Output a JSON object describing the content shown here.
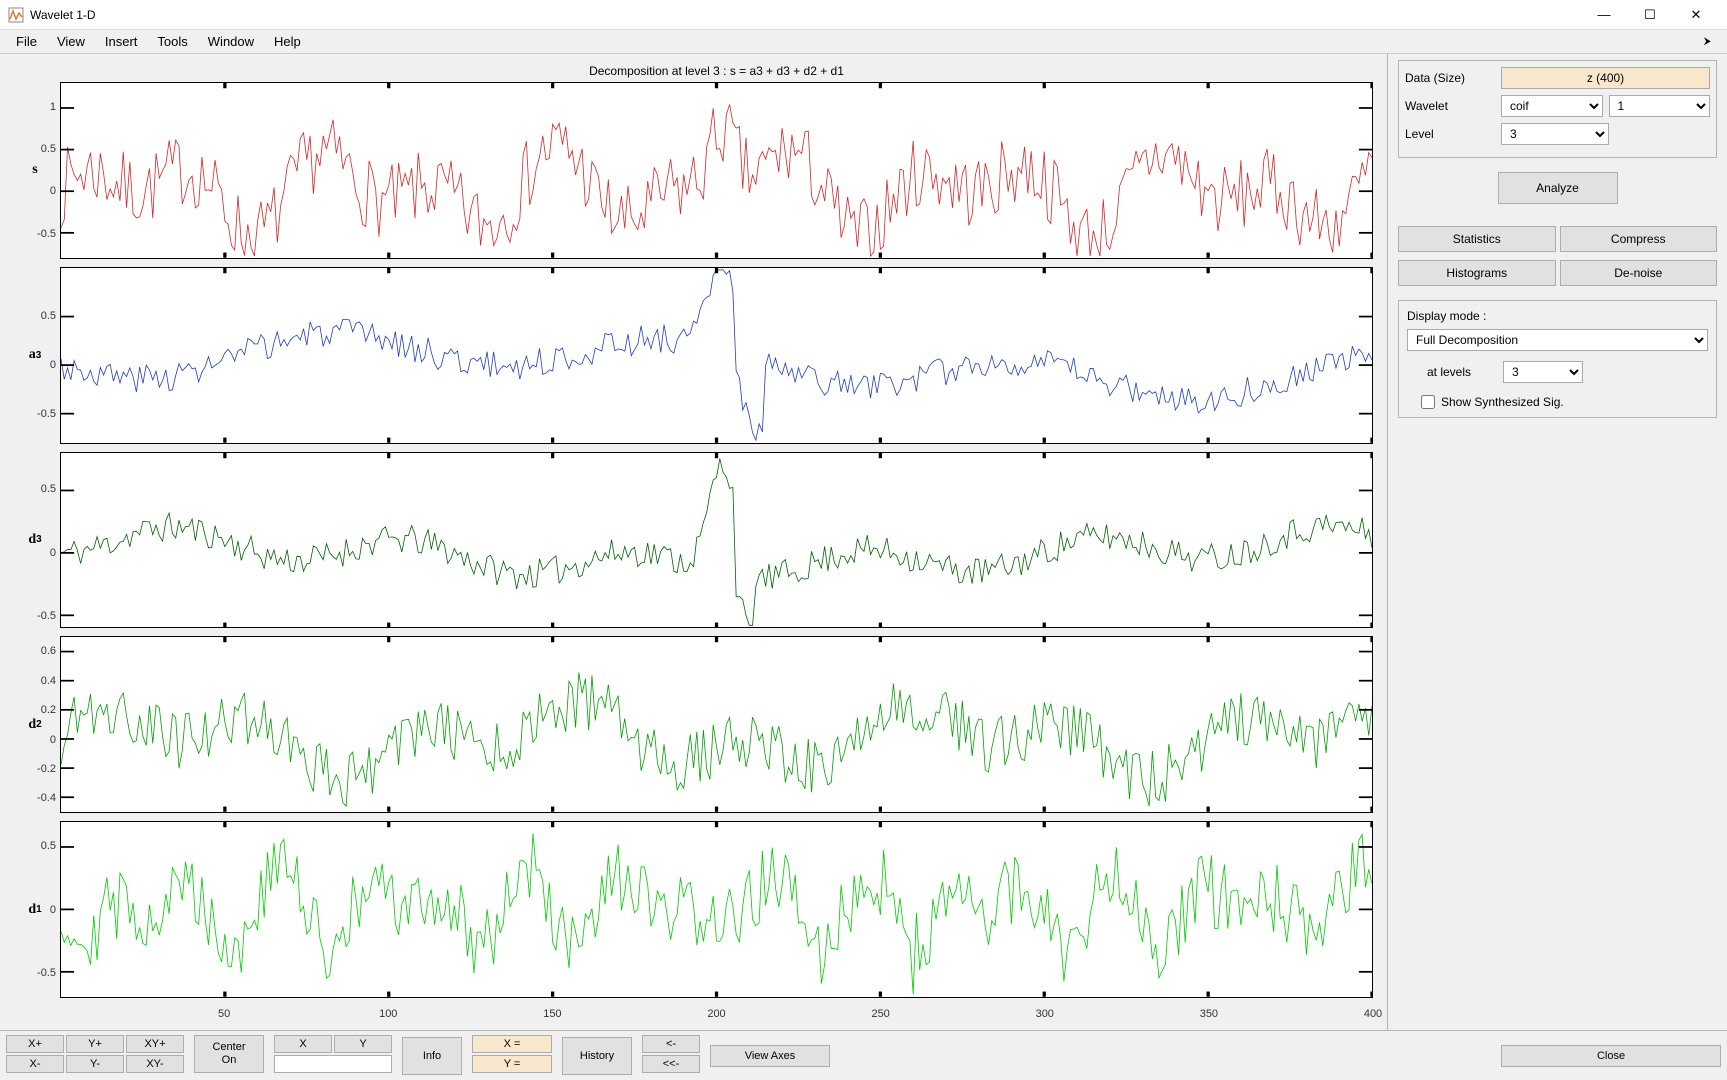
{
  "window": {
    "title": "Wavelet 1-D",
    "minimize": "—",
    "maximize": "☐",
    "close": "✕"
  },
  "menu": [
    "File",
    "View",
    "Insert",
    "Tools",
    "Window",
    "Help"
  ],
  "chart_title": "Decomposition at level 3 : s = a3 + d3 + d2 + d1",
  "charts": {
    "s": {
      "label": "s",
      "color": "#d62728",
      "ylim": [
        -0.8,
        1.3
      ],
      "yticks": [
        -0.5,
        0,
        0.5,
        1
      ],
      "amp": 0.55,
      "noise": 0.45,
      "freq": 0.9,
      "seed": 7
    },
    "a3": {
      "label": "a3",
      "color": "#1f3fbf",
      "ylim": [
        -0.8,
        1.0
      ],
      "yticks": [
        -0.5,
        0,
        0.5
      ],
      "amp": 0.35,
      "noise": 0.15,
      "freq": 0.15,
      "seed": 3
    },
    "d3": {
      "label": "d3",
      "color": "#006400",
      "ylim": [
        -0.6,
        0.8
      ],
      "yticks": [
        -0.5,
        0,
        0.5
      ],
      "amp": 0.22,
      "noise": 0.12,
      "freq": 0.35,
      "seed": 11
    },
    "d2": {
      "label": "d2",
      "color": "#00a000",
      "ylim": [
        -0.5,
        0.7
      ],
      "yticks": [
        -0.4,
        -0.2,
        0,
        0.2,
        0.4,
        0.6
      ],
      "amp": 0.28,
      "noise": 0.2,
      "freq": 0.6,
      "seed": 19
    },
    "d1": {
      "label": "d1",
      "color": "#00cc00",
      "ylim": [
        -0.7,
        0.7
      ],
      "yticks": [
        -0.5,
        0,
        0.5
      ],
      "amp": 0.35,
      "noise": 0.3,
      "freq": 1.4,
      "seed": 29
    }
  },
  "xaxis": {
    "min": 0,
    "max": 400,
    "ticks": [
      50,
      100,
      150,
      200,
      250,
      300,
      350,
      400
    ]
  },
  "controls": {
    "data_label": "Data  (Size)",
    "data_value": "z  (400)",
    "wavelet_label": "Wavelet",
    "wavelet_family": "coif",
    "wavelet_order": "1",
    "level_label": "Level",
    "level_value": "3",
    "analyze": "Analyze",
    "statistics": "Statistics",
    "compress": "Compress",
    "histograms": "Histograms",
    "denoise": "De-noise",
    "display_mode_label": "Display mode :",
    "display_mode": "Full Decomposition",
    "at_levels_label": "at levels",
    "at_levels": "3",
    "show_synth": "Show Synthesized Sig."
  },
  "bottom": {
    "xplus": "X+",
    "yplus": "Y+",
    "xyplus": "XY+",
    "xminus": "X-",
    "yminus": "Y-",
    "xyminus": "XY-",
    "center": "Center\nOn",
    "X": "X",
    "Y": "Y",
    "info": "Info",
    "xeq": "X =",
    "yeq": "Y =",
    "history": "History",
    "back": "<-",
    "fwdback": "<<-",
    "viewaxes": "View Axes",
    "close": "Close"
  }
}
